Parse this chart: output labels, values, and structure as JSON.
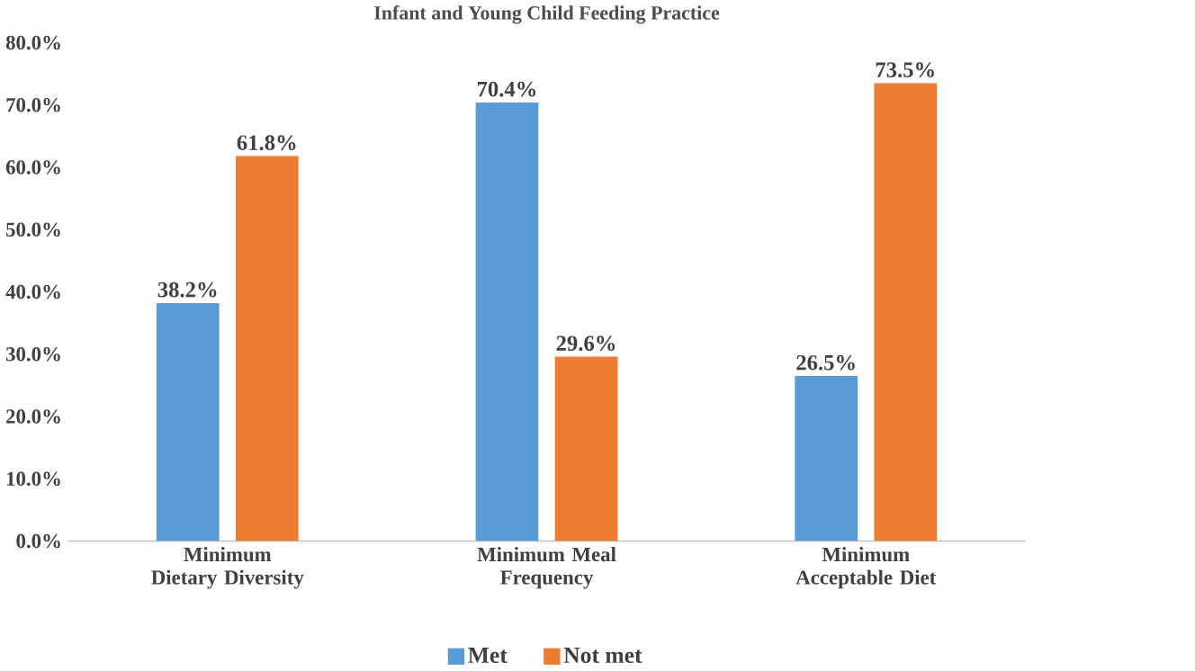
{
  "chart_data": {
    "type": "bar",
    "title": "Infant and Young Child Feeding Practice",
    "categories": [
      "Minimum Dietary Diversity",
      "Minimum Meal Frequency",
      "Minimum Acceptable Diet"
    ],
    "series": [
      {
        "name": "Met",
        "color": "#5b9bd5",
        "values": [
          38.2,
          70.4,
          26.5
        ],
        "value_labels": [
          "38.2%",
          "70.4%",
          "26.5%"
        ]
      },
      {
        "name": "Not met",
        "color": "#ed7d31",
        "values": [
          61.8,
          29.6,
          73.5
        ],
        "value_labels": [
          "61.8%",
          "29.6%",
          "73.5%"
        ]
      }
    ],
    "ylim": [
      0,
      80
    ],
    "yticks": [
      {
        "value": 0,
        "label": "0.0%"
      },
      {
        "value": 10,
        "label": "10.0%"
      },
      {
        "value": 20,
        "label": "20.0%"
      },
      {
        "value": 30,
        "label": "30.0%"
      },
      {
        "value": 40,
        "label": "40.0%"
      },
      {
        "value": 50,
        "label": "50.0%"
      },
      {
        "value": 60,
        "label": "60.0%"
      },
      {
        "value": 70,
        "label": "70.0%"
      },
      {
        "value": 80,
        "label": "80.0%"
      }
    ],
    "grid": false,
    "legend": "bottom"
  }
}
